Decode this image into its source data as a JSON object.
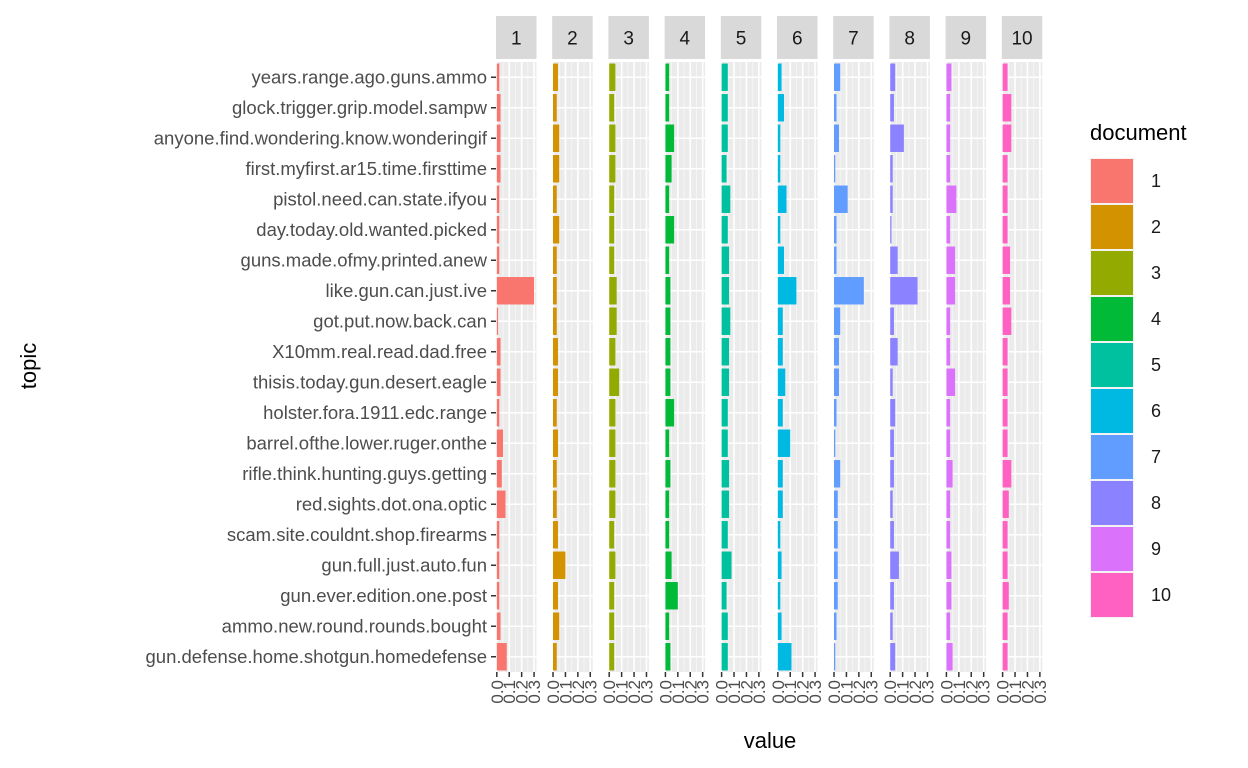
{
  "chart_data": {
    "type": "bar",
    "orientation": "horizontal",
    "layout": "faceted",
    "xlabel": "value",
    "ylabel": "topic",
    "xlim": [
      0,
      0.3
    ],
    "x_ticks": [
      "0.0",
      "0.1",
      "0.2",
      "0.3"
    ],
    "grid": true,
    "legend_title": "document",
    "legend_position": "right",
    "topics": [
      "years.range.ago.guns.ammo",
      "glock.trigger.grip.model.sampw",
      "anyone.find.wondering.know.wonderingif",
      "first.myfirst.ar15.time.firsttime",
      "pistol.need.can.state.ifyou",
      "day.today.old.wanted.picked",
      "guns.made.ofmy.printed.anew",
      "like.gun.can.just.ive",
      "got.put.now.back.can",
      "X10mm.real.read.dad.free",
      "thisis.today.gun.desert.eagle",
      "holster.fora.1911.edc.range",
      "barrel.ofthe.lower.ruger.onthe",
      "rifle.think.hunting.guys.getting",
      "red.sights.dot.ona.optic",
      "scam.site.couldnt.shop.firearms",
      "gun.full.just.auto.fun",
      "gun.ever.edition.one.post",
      "ammo.new.round.rounds.bought",
      "gun.defense.home.shotgun.homedefense"
    ],
    "series": [
      {
        "name": "1",
        "color": "#F8766D",
        "values": [
          0.02,
          0.03,
          0.03,
          0.03,
          0.02,
          0.02,
          0.02,
          0.3,
          0.01,
          0.03,
          0.03,
          0.02,
          0.05,
          0.04,
          0.07,
          0.02,
          0.02,
          0.02,
          0.03,
          0.08
        ]
      },
      {
        "name": "2",
        "color": "#D39200",
        "values": [
          0.04,
          0.03,
          0.05,
          0.05,
          0.03,
          0.05,
          0.03,
          0.03,
          0.03,
          0.04,
          0.04,
          0.03,
          0.04,
          0.03,
          0.03,
          0.04,
          0.1,
          0.04,
          0.05,
          0.03
        ]
      },
      {
        "name": "3",
        "color": "#93AA00",
        "values": [
          0.05,
          0.04,
          0.05,
          0.05,
          0.04,
          0.04,
          0.04,
          0.06,
          0.06,
          0.05,
          0.08,
          0.05,
          0.05,
          0.05,
          0.05,
          0.04,
          0.05,
          0.04,
          0.04,
          0.04
        ]
      },
      {
        "name": "4",
        "color": "#00BA38",
        "values": [
          0.03,
          0.03,
          0.07,
          0.05,
          0.03,
          0.07,
          0.03,
          0.04,
          0.04,
          0.04,
          0.04,
          0.07,
          0.03,
          0.04,
          0.03,
          0.03,
          0.05,
          0.1,
          0.03,
          0.04
        ]
      },
      {
        "name": "5",
        "color": "#00C19F",
        "values": [
          0.05,
          0.05,
          0.05,
          0.04,
          0.07,
          0.05,
          0.06,
          0.06,
          0.07,
          0.06,
          0.06,
          0.05,
          0.05,
          0.06,
          0.06,
          0.05,
          0.08,
          0.04,
          0.05,
          0.05
        ]
      },
      {
        "name": "6",
        "color": "#00B9E3",
        "values": [
          0.03,
          0.05,
          0.02,
          0.02,
          0.07,
          0.02,
          0.05,
          0.15,
          0.04,
          0.04,
          0.06,
          0.04,
          0.1,
          0.04,
          0.04,
          0.02,
          0.03,
          0.02,
          0.03,
          0.11
        ]
      },
      {
        "name": "7",
        "color": "#619CFF",
        "values": [
          0.05,
          0.02,
          0.04,
          0.01,
          0.11,
          0.02,
          0.02,
          0.24,
          0.05,
          0.04,
          0.04,
          0.02,
          0.01,
          0.05,
          0.03,
          0.03,
          0.03,
          0.03,
          0.02,
          0.01
        ]
      },
      {
        "name": "8",
        "color": "#8B82FF",
        "values": [
          0.04,
          0.03,
          0.11,
          0.02,
          0.02,
          0.01,
          0.06,
          0.22,
          0.03,
          0.06,
          0.02,
          0.04,
          0.03,
          0.03,
          0.02,
          0.03,
          0.07,
          0.03,
          0.02,
          0.04
        ]
      },
      {
        "name": "9",
        "color": "#DB72FB",
        "values": [
          0.04,
          0.03,
          0.03,
          0.03,
          0.08,
          0.03,
          0.07,
          0.07,
          0.03,
          0.03,
          0.07,
          0.03,
          0.03,
          0.05,
          0.03,
          0.03,
          0.04,
          0.04,
          0.03,
          0.05
        ]
      },
      {
        "name": "10",
        "color": "#FF61C3",
        "values": [
          0.04,
          0.07,
          0.07,
          0.04,
          0.04,
          0.04,
          0.06,
          0.06,
          0.07,
          0.04,
          0.04,
          0.04,
          0.04,
          0.07,
          0.05,
          0.04,
          0.04,
          0.05,
          0.04,
          0.04
        ]
      }
    ]
  }
}
